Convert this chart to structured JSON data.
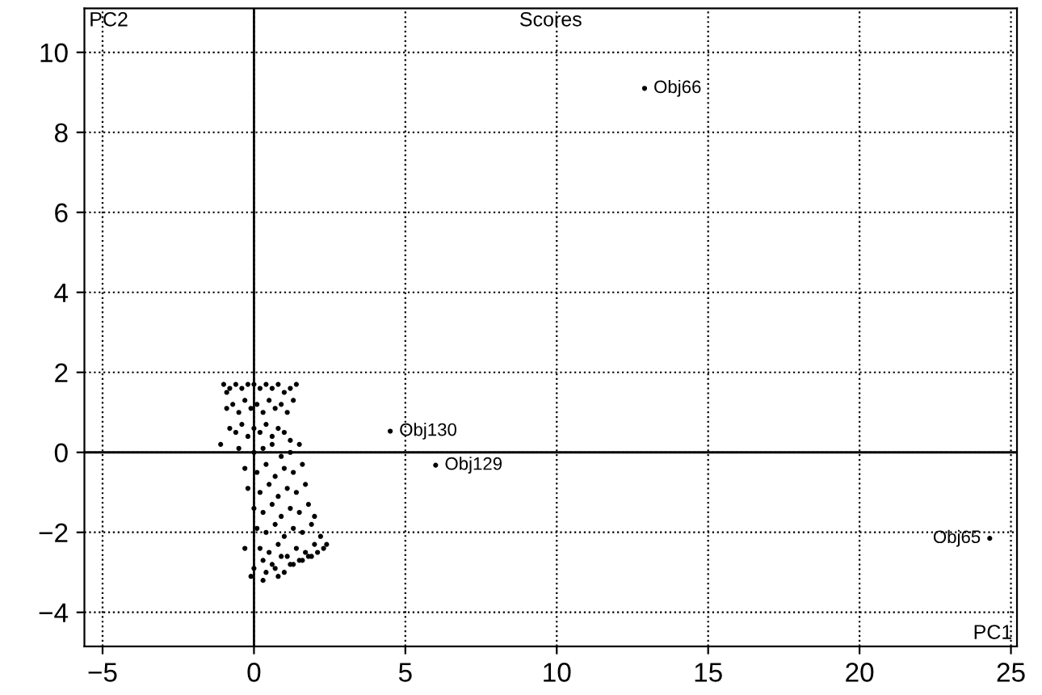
{
  "chart_data": {
    "type": "scatter",
    "title": "Scores",
    "xlabel": "PC1",
    "ylabel": "PC2",
    "x": [
      -1.0,
      -0.9,
      -0.8,
      -0.6,
      -0.4,
      -0.2,
      0.0,
      0.2,
      0.4,
      0.6,
      0.8,
      1.0,
      1.2,
      1.4,
      -0.9,
      -0.7,
      -0.5,
      -0.3,
      -0.1,
      0.1,
      0.3,
      0.5,
      0.7,
      0.9,
      1.1,
      1.3,
      -0.8,
      -0.6,
      -0.4,
      -0.2,
      0.0,
      0.2,
      0.4,
      0.6,
      0.8,
      1.0,
      1.2,
      -1.1,
      -0.5,
      0.0,
      0.3,
      0.6,
      0.9,
      1.2,
      1.5,
      -0.3,
      0.1,
      0.4,
      0.7,
      1.0,
      1.3,
      1.6,
      -0.2,
      0.2,
      0.5,
      0.8,
      1.1,
      1.4,
      1.7,
      0.0,
      0.3,
      0.6,
      0.9,
      1.2,
      1.5,
      1.8,
      2.0,
      0.1,
      0.4,
      0.7,
      1.0,
      1.3,
      1.6,
      1.9,
      2.2,
      0.2,
      0.5,
      0.8,
      1.1,
      1.4,
      1.7,
      2.0,
      2.3,
      -0.3,
      0.3,
      0.6,
      0.9,
      1.2,
      1.5,
      1.8,
      2.1,
      2.4,
      0.0,
      0.4,
      0.7,
      1.0,
      1.3,
      1.6,
      1.9,
      -0.1,
      0.3,
      0.8,
      12.9,
      4.5,
      6.0,
      24.3
    ],
    "values": [
      1.7,
      1.5,
      1.6,
      1.7,
      1.6,
      1.7,
      1.7,
      1.6,
      1.7,
      1.6,
      1.7,
      1.5,
      1.6,
      1.7,
      1.1,
      1.2,
      1.0,
      1.3,
      1.1,
      1.2,
      1.0,
      1.3,
      1.1,
      1.2,
      1.0,
      1.3,
      0.6,
      0.5,
      0.7,
      0.4,
      0.6,
      0.5,
      0.7,
      0.4,
      0.6,
      0.5,
      0.3,
      0.2,
      0.1,
      0.0,
      0.1,
      0.2,
      -0.1,
      0.0,
      0.2,
      -0.4,
      -0.5,
      -0.3,
      -0.6,
      -0.4,
      -0.5,
      -0.3,
      -0.9,
      -1.0,
      -0.8,
      -1.1,
      -0.9,
      -1.0,
      -0.8,
      -1.4,
      -1.5,
      -1.3,
      -1.6,
      -1.4,
      -1.5,
      -1.3,
      -1.6,
      -1.9,
      -2.0,
      -1.8,
      -2.1,
      -1.9,
      -2.0,
      -1.8,
      -2.1,
      -2.4,
      -2.5,
      -2.3,
      -2.6,
      -2.4,
      -2.5,
      -2.3,
      -2.4,
      -2.4,
      -2.7,
      -2.8,
      -2.6,
      -2.8,
      -2.7,
      -2.6,
      -2.5,
      -2.3,
      -2.9,
      -3.0,
      -2.9,
      -3.0,
      -2.8,
      -2.7,
      -2.6,
      -3.1,
      -3.2,
      -3.1,
      9.1,
      0.53,
      -0.32,
      -2.15
    ],
    "color": "#000000",
    "marker": "circle",
    "annotations": [
      {
        "text": "Obj66",
        "x": 12.9,
        "y": 9.1
      },
      {
        "text": "Obj130",
        "x": 4.5,
        "y": 0.53
      },
      {
        "text": "Obj129",
        "x": 6.0,
        "y": -0.32
      },
      {
        "text": "Obj65",
        "x": 24.3,
        "y": -2.15
      }
    ],
    "xlim": [
      -5.6,
      25.2
    ],
    "ylim": [
      -4.85,
      11.1
    ],
    "xticks": [
      {
        "value": -5,
        "label": "−5"
      },
      0,
      5,
      10,
      15,
      20,
      25
    ],
    "yticks": [
      {
        "value": -4,
        "label": "−4"
      },
      {
        "value": -2,
        "label": "−2"
      },
      0,
      2,
      4,
      6,
      8,
      10
    ],
    "grid": true
  }
}
